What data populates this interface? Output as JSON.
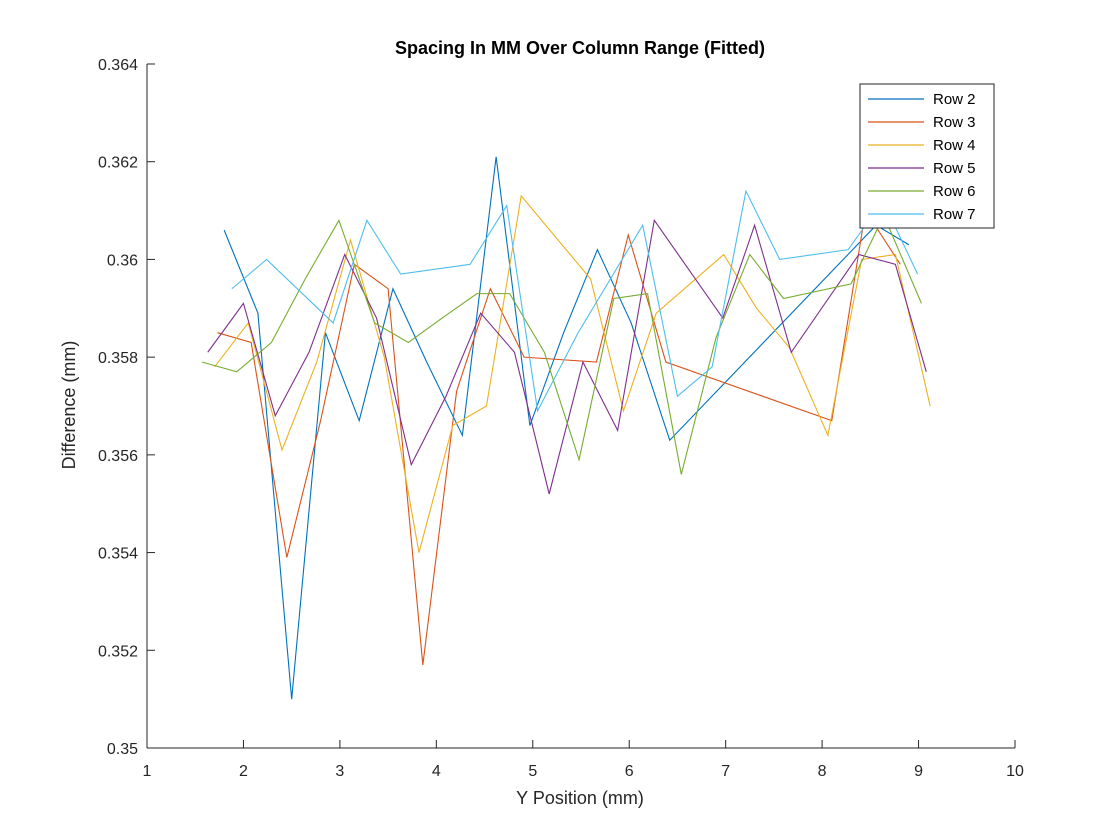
{
  "chart_data": {
    "type": "line",
    "title": "Spacing In MM Over Column Range (Fitted)",
    "xlabel": "Y Position (mm)",
    "ylabel": "Difference (mm)",
    "xlim": [
      1,
      10
    ],
    "ylim": [
      0.35,
      0.364
    ],
    "xticks": [
      1,
      2,
      3,
      4,
      5,
      6,
      7,
      8,
      9,
      10
    ],
    "yticks": [
      0.35,
      0.352,
      0.354,
      0.356,
      0.358,
      0.36,
      0.362,
      0.364
    ],
    "xtick_labels": [
      "1",
      "2",
      "3",
      "4",
      "5",
      "6",
      "7",
      "8",
      "9",
      "10"
    ],
    "ytick_labels": [
      "0.35",
      "0.352",
      "0.354",
      "0.356",
      "0.358",
      "0.36",
      "0.362",
      "0.364"
    ],
    "grid": false,
    "legend_position": "top-right",
    "series": [
      {
        "name": "Row 2",
        "color": "#0072BD",
        "x": [
          1.8,
          2.15,
          2.5,
          2.85,
          3.2,
          3.55,
          3.9,
          4.27,
          4.62,
          4.97,
          5.32,
          5.67,
          6.02,
          6.42,
          8.56,
          8.9
        ],
        "y": [
          0.3606,
          0.3589,
          0.351,
          0.3585,
          0.3567,
          0.3594,
          0.3579,
          0.3564,
          0.3621,
          0.3566,
          0.3585,
          0.3602,
          0.3587,
          0.3563,
          0.3607,
          0.3603
        ]
      },
      {
        "name": "Row 3",
        "color": "#D95319",
        "x": [
          1.73,
          2.08,
          2.45,
          2.8,
          3.15,
          3.5,
          3.86,
          4.21,
          4.56,
          4.91,
          5.66,
          5.99,
          6.38,
          8.1,
          8.45,
          8.81
        ],
        "y": [
          0.3585,
          0.3583,
          0.3539,
          0.3567,
          0.3599,
          0.3594,
          0.3517,
          0.3573,
          0.3594,
          0.358,
          0.3579,
          0.3605,
          0.3579,
          0.3567,
          0.361,
          0.3599
        ]
      },
      {
        "name": "Row 4",
        "color": "#EDB120",
        "x": [
          1.7,
          2.05,
          2.4,
          2.76,
          3.11,
          3.46,
          3.82,
          4.17,
          4.52,
          4.88,
          5.6,
          5.94,
          6.28,
          6.98,
          7.32,
          7.66,
          8.06,
          8.41,
          8.76,
          9.12
        ],
        "y": [
          0.3578,
          0.3587,
          0.3561,
          0.3579,
          0.3604,
          0.358,
          0.354,
          0.3566,
          0.357,
          0.3613,
          0.3596,
          0.3569,
          0.3589,
          0.3601,
          0.359,
          0.3582,
          0.3564,
          0.36,
          0.3601,
          0.357
        ]
      },
      {
        "name": "Row 5",
        "color": "#7E2F8E",
        "x": [
          1.63,
          2.0,
          2.33,
          2.68,
          3.05,
          3.38,
          3.74,
          4.1,
          4.46,
          4.81,
          5.17,
          5.52,
          5.88,
          6.26,
          6.97,
          7.3,
          7.68,
          8.38,
          8.76,
          9.08
        ],
        "y": [
          0.3581,
          0.3591,
          0.3568,
          0.3581,
          0.3601,
          0.3588,
          0.3558,
          0.3572,
          0.3589,
          0.3581,
          0.3552,
          0.3579,
          0.3565,
          0.3608,
          0.3588,
          0.3607,
          0.3581,
          0.3601,
          0.3599,
          0.3577
        ]
      },
      {
        "name": "Row 6",
        "color": "#77AC30",
        "x": [
          1.57,
          1.93,
          2.29,
          2.64,
          2.99,
          3.36,
          3.71,
          4.06,
          4.42,
          4.76,
          5.12,
          5.48,
          5.84,
          6.19,
          6.54,
          6.9,
          7.25,
          7.6,
          8.3,
          8.64,
          9.03
        ],
        "y": [
          0.3579,
          0.3577,
          0.3583,
          0.3596,
          0.3608,
          0.3587,
          0.3583,
          0.3588,
          0.3593,
          0.3593,
          0.3581,
          0.3559,
          0.3592,
          0.3593,
          0.3556,
          0.3584,
          0.3601,
          0.3592,
          0.3595,
          0.3609,
          0.3591
        ]
      },
      {
        "name": "Row 7",
        "color": "#4DBEEE",
        "x": [
          1.88,
          2.24,
          2.93,
          3.28,
          3.63,
          4.35,
          4.73,
          5.05,
          5.47,
          6.14,
          6.5,
          6.86,
          7.21,
          7.56,
          8.27,
          8.63,
          8.99
        ],
        "y": [
          0.3594,
          0.36,
          0.3587,
          0.3608,
          0.3597,
          0.3599,
          0.3611,
          0.3569,
          0.3585,
          0.3607,
          0.3572,
          0.3578,
          0.3614,
          0.36,
          0.3602,
          0.3612,
          0.3597
        ]
      }
    ]
  }
}
